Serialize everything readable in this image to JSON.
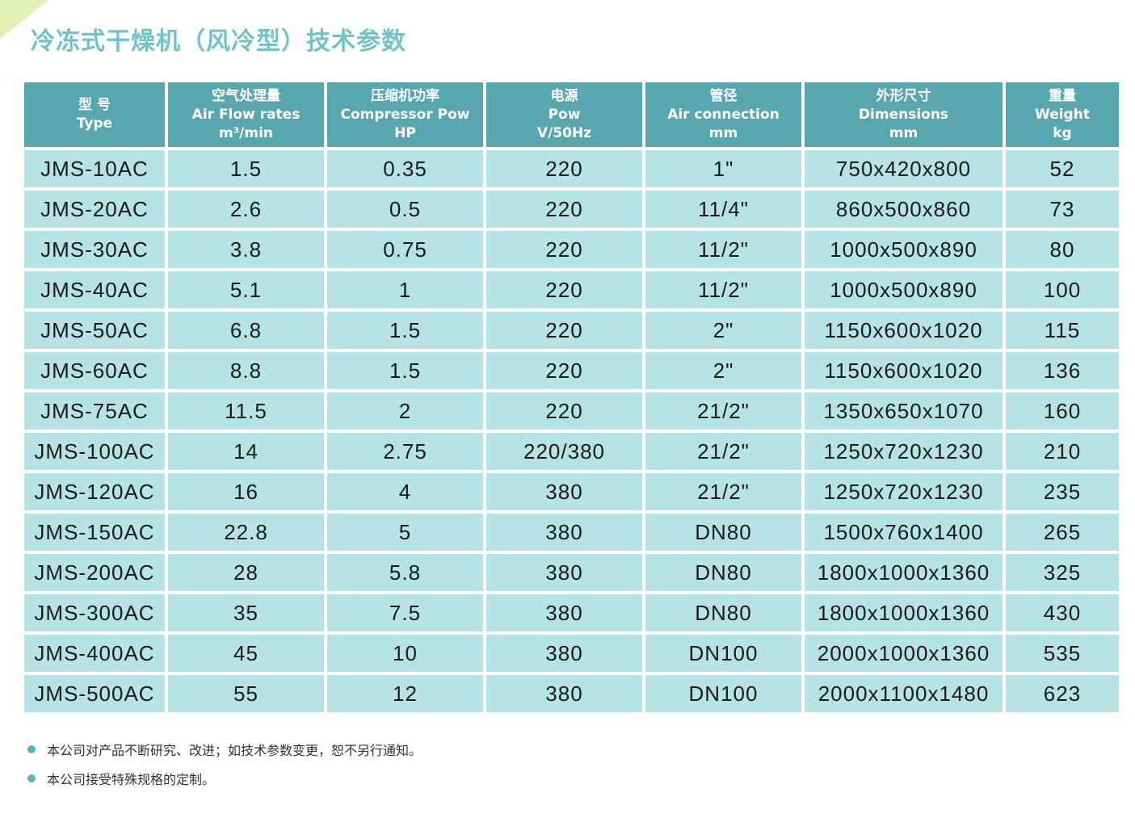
{
  "title": "冷冻式干燥机（风冷型）技术参数",
  "table": {
    "headers": [
      [
        "型 号",
        "Type"
      ],
      [
        "空气处理量",
        "Air Flow rates",
        "m³/min"
      ],
      [
        "压缩机功率",
        "Compressor Pow",
        "HP"
      ],
      [
        "电源",
        "Pow",
        "V/50Hz"
      ],
      [
        "管径",
        "Air connection",
        "mm"
      ],
      [
        "外形尺寸",
        "Dimensions",
        "mm"
      ],
      [
        "重量",
        "Weight",
        "kg"
      ]
    ],
    "rows": [
      [
        "JMS-10AC",
        "1.5",
        "0.35",
        "220",
        "1\"",
        "750x420x800",
        "52"
      ],
      [
        "JMS-20AC",
        "2.6",
        "0.5",
        "220",
        "11/4\"",
        "860x500x860",
        "73"
      ],
      [
        "JMS-30AC",
        "3.8",
        "0.75",
        "220",
        "11/2\"",
        "1000x500x890",
        "80"
      ],
      [
        "JMS-40AC",
        "5.1",
        "1",
        "220",
        "11/2\"",
        "1000x500x890",
        "100"
      ],
      [
        "JMS-50AC",
        "6.8",
        "1.5",
        "220",
        "2\"",
        "1150x600x1020",
        "115"
      ],
      [
        "JMS-60AC",
        "8.8",
        "1.5",
        "220",
        "2\"",
        "1150x600x1020",
        "136"
      ],
      [
        "JMS-75AC",
        "11.5",
        "2",
        "220",
        "21/2\"",
        "1350x650x1070",
        "160"
      ],
      [
        "JMS-100AC",
        "14",
        "2.75",
        "220/380",
        "21/2\"",
        "1250x720x1230",
        "210"
      ],
      [
        "JMS-120AC",
        "16",
        "4",
        "380",
        "21/2\"",
        "1250x720x1230",
        "235"
      ],
      [
        "JMS-150AC",
        "22.8",
        "5",
        "380",
        "DN80",
        "1500x760x1400",
        "265"
      ],
      [
        "JMS-200AC",
        "28",
        "5.8",
        "380",
        "DN80",
        "1800x1000x1360",
        "325"
      ],
      [
        "JMS-300AC",
        "35",
        "7.5",
        "380",
        "DN80",
        "1800x1000x1360",
        "430"
      ],
      [
        "JMS-400AC",
        "45",
        "10",
        "380",
        "DN100",
        "2000x1000x1360",
        "535"
      ],
      [
        "JMS-500AC",
        "55",
        "12",
        "380",
        "DN100",
        "2000x1100x1480",
        "623"
      ]
    ]
  },
  "notes": [
    "本公司对产品不断研究、改进；如技术参数变更，恕不另行通知。",
    "本公司接受特殊规格的定制。"
  ],
  "colors": {
    "title": "#6fc3c9",
    "header_bg": "#58a7ae",
    "cell_bg": "#b6e4e5",
    "bullet": "#5cb3ba"
  },
  "icons": {
    "bullet": "bullet-icon"
  }
}
